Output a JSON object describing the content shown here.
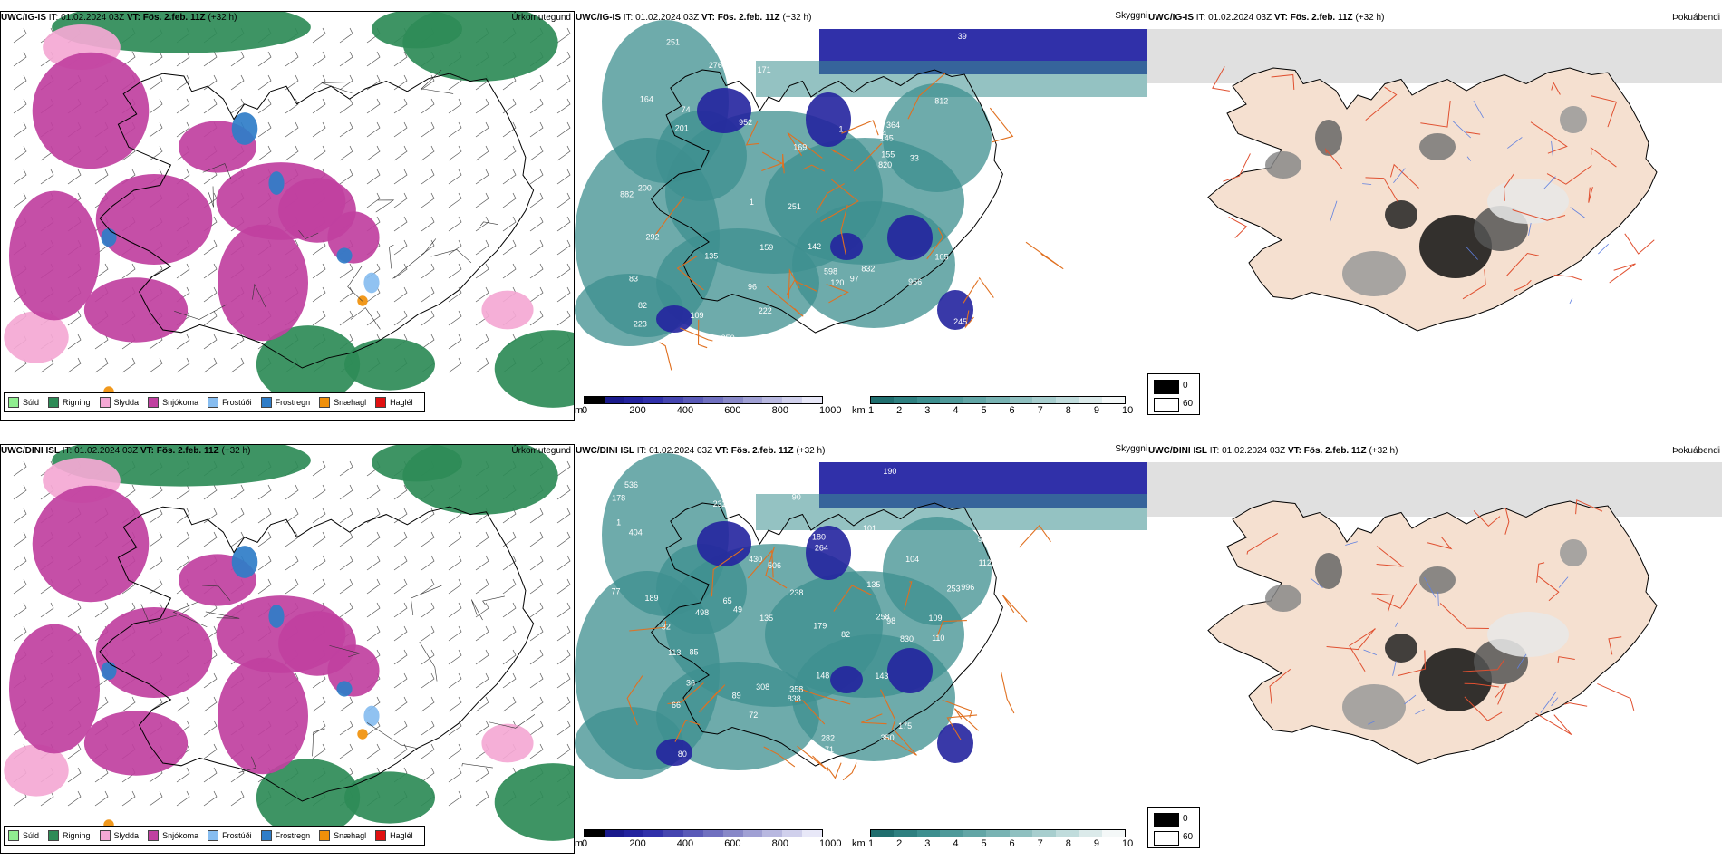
{
  "rows": [
    {
      "model": "UWC/IG-IS",
      "it_label": "IT:",
      "it_value": "01.02.2024 03Z",
      "vt_label": "VT:",
      "vt_value": "Fös. 2.feb. 11Z",
      "lead": "(+32 h)",
      "station_labels": [
        "102",
        "74",
        "96",
        "292",
        "364",
        "272",
        "276",
        "200",
        "201",
        "213",
        "164",
        "223",
        "598",
        "82",
        "171",
        "1",
        "159",
        "169",
        "83",
        "83",
        "241",
        "131",
        "952",
        "279",
        "222",
        "97",
        "145",
        "155",
        "120",
        "109",
        "135",
        "142",
        "251",
        "956",
        "956",
        "812",
        "350",
        "820",
        "832",
        "251",
        "258",
        "245",
        "74",
        "105",
        "39",
        "33",
        "251",
        "882",
        "1"
      ]
    },
    {
      "model": "UWC/DINI ISL",
      "it_label": "IT:",
      "it_value": "01.02.2024 03Z",
      "vt_label": "VT:",
      "vt_value": "Fös. 2.feb. 11Z",
      "lead": "(+32 h)",
      "station_labels": [
        "71",
        "85",
        "348",
        "89",
        "104",
        "96",
        "110",
        "498",
        "838",
        "358",
        "253",
        "180",
        "179",
        "189",
        "166",
        "430",
        "80",
        "92",
        "65",
        "90",
        "77",
        "101",
        "49",
        "72",
        "102",
        "404",
        "308",
        "536",
        "278",
        "135",
        "350",
        "238",
        "98",
        "113",
        "109",
        "190",
        "143",
        "506",
        "258",
        "135",
        "264",
        "178",
        "645",
        "148",
        "112",
        "232",
        "175",
        "996",
        "282",
        "74",
        "36",
        "82",
        "66",
        "32",
        "830",
        "1"
      ]
    }
  ],
  "panel_names": [
    "Úrkomutegund",
    "Skyggni",
    "Þokuábendi"
  ],
  "precip_legend": [
    {
      "label": "Súld",
      "color": "#90ee90"
    },
    {
      "label": "Rigning",
      "color": "#2e8b57"
    },
    {
      "label": "Slydda",
      "color": "#f4a8d4"
    },
    {
      "label": "Snjókoma",
      "color": "#c040a0"
    },
    {
      "label": "Frostúði",
      "color": "#87bdf0"
    },
    {
      "label": "Frostregn",
      "color": "#2f7dc8"
    },
    {
      "label": "Snæhagl",
      "color": "#f0900a"
    },
    {
      "label": "Haglél",
      "color": "#e01010"
    }
  ],
  "ceiling_scale": {
    "unit": "m",
    "ticks": [
      "0",
      "200",
      "400",
      "600",
      "800",
      "1000"
    ],
    "colors": [
      "#000000",
      "#1a1a8c",
      "#23239e",
      "#3030aa",
      "#4545b0",
      "#5a5ab8",
      "#7070c0",
      "#8888c8",
      "#a0a0d4",
      "#b8b8e0",
      "#d0d0ec",
      "#e8e8f8"
    ]
  },
  "visibility_scale": {
    "unit": "km",
    "ticks": [
      "1",
      "2",
      "3",
      "4",
      "5",
      "6",
      "7",
      "8",
      "9",
      "10"
    ],
    "colors": [
      "#1f6e6e",
      "#2e8080",
      "#3d8f8f",
      "#4f9a9a",
      "#62a6a6",
      "#78b3b3",
      "#8fc0c0",
      "#a7cece",
      "#c0dcdc",
      "#dbeaea",
      "#f4f8f8"
    ]
  },
  "fog_legend": [
    {
      "label": "0",
      "color": "#000000"
    },
    {
      "label": "60",
      "color": "#ffffff"
    }
  ],
  "colors": {
    "coast": "#000000",
    "road": "#e07020",
    "fog_land": "#f5e0d0",
    "river": "#6080e0",
    "low_cloud": "#1a1aa0",
    "vis_teal": "#3d8f8f",
    "snow": "#c040a0",
    "rain": "#2e8b57"
  }
}
